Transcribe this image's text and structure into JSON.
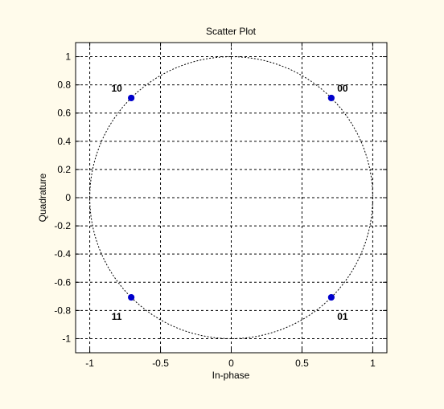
{
  "chart_data": {
    "type": "scatter",
    "title": "Scatter Plot",
    "xlabel": "In-phase",
    "ylabel": "Quadrature",
    "xlim": [
      -1.1,
      1.1
    ],
    "ylim": [
      -1.1,
      1.1
    ],
    "xticks": [
      -1,
      -0.5,
      0,
      0.5,
      1
    ],
    "xtick_labels": [
      "-1",
      "-0.5",
      "0",
      "0.5",
      "1"
    ],
    "yticks": [
      -1,
      -0.8,
      -0.6,
      -0.4,
      -0.2,
      0,
      0.2,
      0.4,
      0.6,
      0.8,
      1
    ],
    "ytick_labels": [
      "-1",
      "-0.8",
      "-0.6",
      "-0.4",
      "-0.2",
      "0",
      "0.2",
      "0.4",
      "0.6",
      "0.8",
      "1"
    ],
    "grid": true,
    "reference_circle_radius": 1,
    "points": [
      {
        "x": 0.707,
        "y": 0.707,
        "label": "00"
      },
      {
        "x": 0.707,
        "y": -0.707,
        "label": "01"
      },
      {
        "x": -0.707,
        "y": 0.707,
        "label": "10"
      },
      {
        "x": -0.707,
        "y": -0.707,
        "label": "11"
      }
    ],
    "colors": {
      "background": "#fffbeb",
      "plot_area": "#ffffff",
      "marker": "#0000cc",
      "grid": "#000000",
      "circle": "#000000"
    }
  }
}
